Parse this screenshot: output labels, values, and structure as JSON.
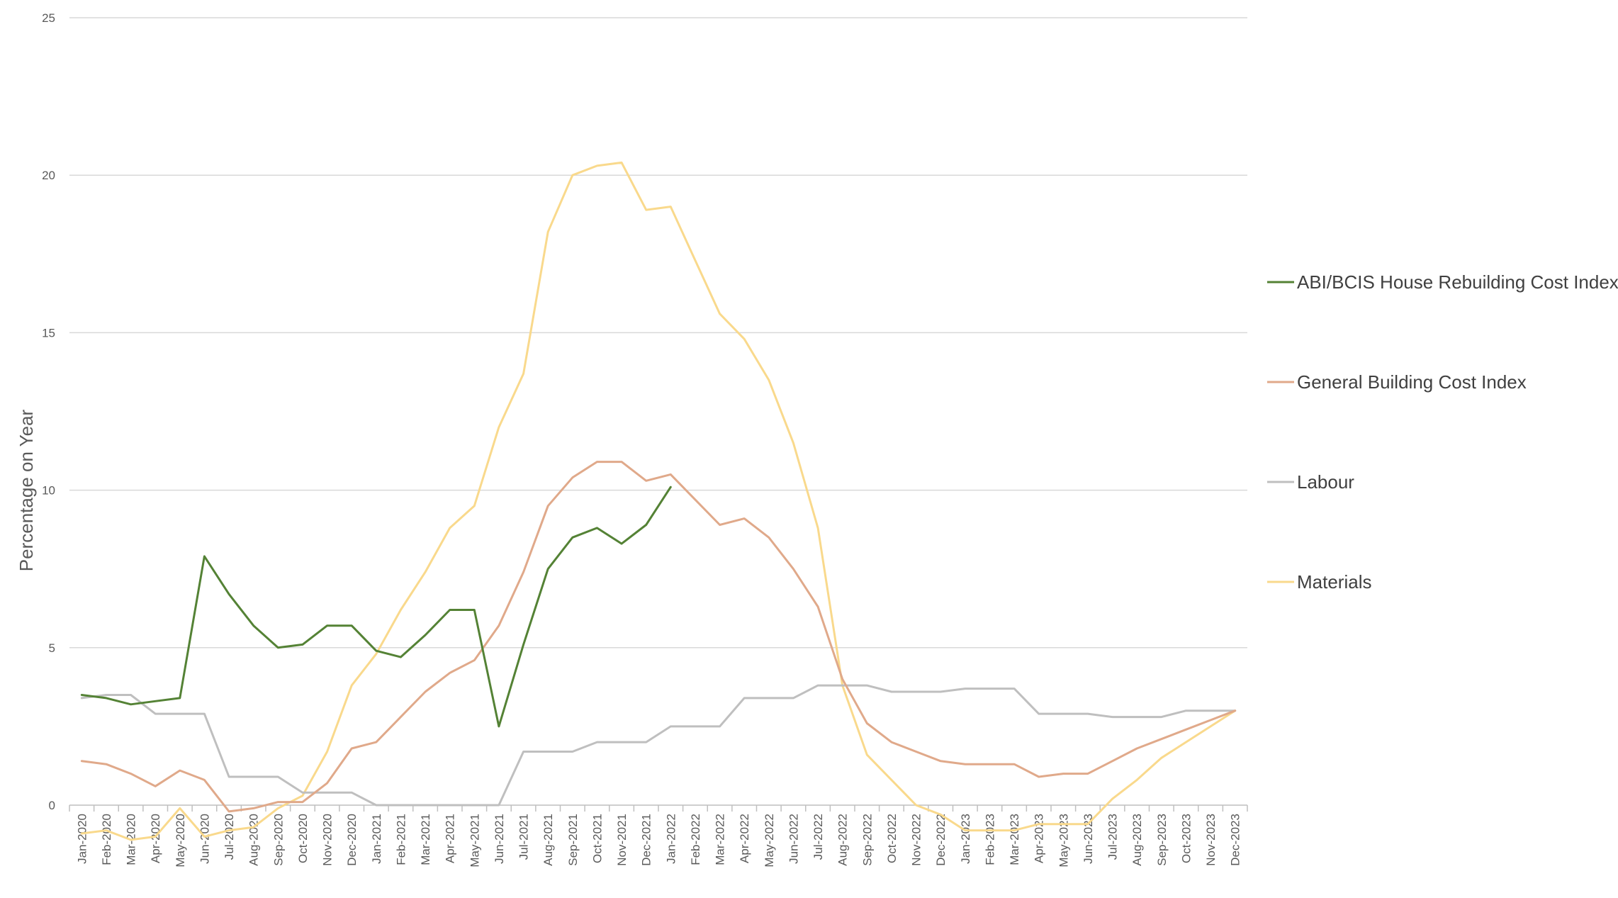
{
  "chart_data": {
    "type": "line",
    "title": "",
    "xlabel": "",
    "ylabel": "Percentage on Year",
    "ylim": [
      0,
      25
    ],
    "yticks": [
      0,
      5,
      10,
      15,
      20,
      25
    ],
    "grid": "horizontal",
    "legend_position": "right",
    "categories": [
      "Jan-2020",
      "Feb-2020",
      "Mar-2020",
      "Apr-2020",
      "May-2020",
      "Jun-2020",
      "Jul-2020",
      "Aug-2020",
      "Sep-2020",
      "Oct-2020",
      "Nov-2020",
      "Dec-2020",
      "Jan-2021",
      "Feb-2021",
      "Mar-2021",
      "Apr-2021",
      "May-2021",
      "Jun-2021",
      "Jul-2021",
      "Aug-2021",
      "Sep-2021",
      "Oct-2021",
      "Nov-2021",
      "Dec-2021",
      "Jan-2022",
      "Feb-2022",
      "Mar-2022",
      "Apr-2022",
      "May-2022",
      "Jun-2022",
      "Jul-2022",
      "Aug-2022",
      "Sep-2022",
      "Oct-2022",
      "Nov-2022",
      "Dec-2022",
      "Jan-2023",
      "Feb-2023",
      "Mar-2023",
      "Apr-2023",
      "May-2023",
      "Jun-2023",
      "Jul-2023",
      "Aug-2023",
      "Sep-2023",
      "Oct-2023",
      "Nov-2023",
      "Dec-2023"
    ],
    "series": [
      {
        "name": "ABI/BCIS House Rebuilding Cost Index",
        "color": "#548235",
        "values": [
          3.5,
          3.4,
          3.2,
          3.3,
          3.4,
          7.9,
          6.7,
          5.7,
          5.0,
          5.1,
          5.7,
          5.7,
          4.9,
          4.7,
          5.4,
          6.2,
          6.2,
          2.5,
          5.1,
          7.5,
          8.5,
          8.8,
          8.3,
          8.9,
          10.1,
          null,
          null,
          null,
          null,
          null,
          null,
          null,
          null,
          null,
          null,
          null,
          null,
          null,
          null,
          null,
          null,
          null,
          null,
          null,
          null,
          null,
          null,
          null
        ]
      },
      {
        "name": "General Building Cost Index",
        "color": "#E0A98A",
        "values": [
          1.4,
          1.3,
          1.0,
          0.6,
          1.1,
          0.8,
          -0.2,
          -0.1,
          0.1,
          0.1,
          0.7,
          1.8,
          2.0,
          2.8,
          3.6,
          4.2,
          4.6,
          5.7,
          7.4,
          9.5,
          10.4,
          10.9,
          10.9,
          10.3,
          10.5,
          9.7,
          8.9,
          9.1,
          8.5,
          7.5,
          6.3,
          4.0,
          2.6,
          2.0,
          1.7,
          1.4,
          1.3,
          1.3,
          1.3,
          0.9,
          1.0,
          1.0,
          1.4,
          1.8,
          2.1,
          2.4,
          2.7,
          3.0
        ]
      },
      {
        "name": "Labour",
        "color": "#BFBFBF",
        "values": [
          3.4,
          3.5,
          3.5,
          2.9,
          2.9,
          2.9,
          0.9,
          0.9,
          0.9,
          0.4,
          0.4,
          0.4,
          0.0,
          0.0,
          0.0,
          0.0,
          0.0,
          0.0,
          1.7,
          1.7,
          1.7,
          2.0,
          2.0,
          2.0,
          2.5,
          2.5,
          2.5,
          3.4,
          3.4,
          3.4,
          3.8,
          3.8,
          3.8,
          3.6,
          3.6,
          3.6,
          3.7,
          3.7,
          3.7,
          2.9,
          2.9,
          2.9,
          2.8,
          2.8,
          2.8,
          3.0,
          3.0,
          3.0
        ]
      },
      {
        "name": "Materials",
        "color": "#F9D98C",
        "values": [
          -0.9,
          -0.8,
          -1.1,
          -1.0,
          -0.1,
          -1.0,
          -0.8,
          -0.7,
          -0.1,
          0.3,
          1.7,
          3.8,
          4.8,
          6.2,
          7.4,
          8.8,
          9.5,
          12.0,
          13.7,
          18.2,
          20.0,
          20.3,
          20.4,
          18.9,
          19.0,
          17.3,
          15.6,
          14.8,
          13.5,
          11.5,
          8.8,
          3.8,
          1.6,
          0.8,
          0.0,
          -0.3,
          -0.8,
          -0.8,
          -0.8,
          -0.6,
          -0.6,
          -0.6,
          0.2,
          0.8,
          1.5,
          2.0,
          2.5,
          3.0
        ]
      }
    ]
  }
}
